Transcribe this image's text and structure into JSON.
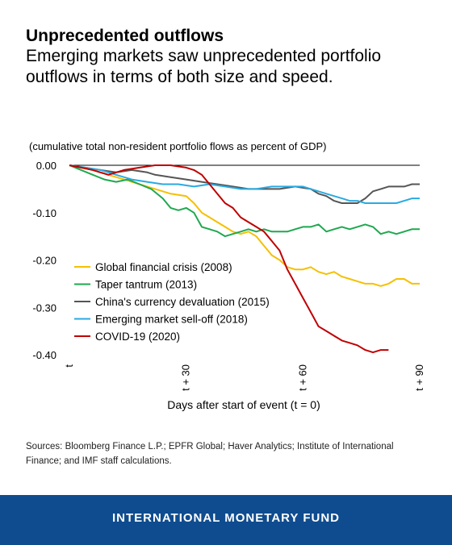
{
  "header": {
    "title": "Unprecedented outflows",
    "subtitle": "Emerging markets saw unprecedented portfolio outflows in terms of both size and speed."
  },
  "sources": "Sources: Bloomberg Finance L.P.;  EPFR Global; Haver Analytics; Institute of International Finance; and IMF staff calculations.",
  "footer": {
    "label": "INTERNATIONAL MONETARY FUND",
    "color": "#0f4c8f"
  },
  "chart_data": {
    "type": "line",
    "title": "",
    "unit_note": "(cumulative total non-resident portfolio flows as percent of GDP)",
    "xlabel": "Days after start of event (t = 0)",
    "ylabel": "",
    "xlim": [
      0,
      90
    ],
    "ylim": [
      -0.4,
      0.0
    ],
    "x_ticks": [
      {
        "value": 0,
        "label": "t"
      },
      {
        "value": 30,
        "label": "t + 30"
      },
      {
        "value": 60,
        "label": "t + 60"
      },
      {
        "value": 90,
        "label": "t + 90"
      }
    ],
    "y_ticks": [
      {
        "value": 0.0,
        "label": "0.00"
      },
      {
        "value": -0.1,
        "label": "-0.10"
      },
      {
        "value": -0.2,
        "label": "-0.20"
      },
      {
        "value": -0.3,
        "label": "-0.30"
      },
      {
        "value": -0.4,
        "label": "-0.40"
      }
    ],
    "grid": false,
    "legend_position": "bottom-left",
    "series": [
      {
        "name": "Global financial crisis (2008)",
        "color": "#f5c000",
        "points": [
          [
            0,
            0.0
          ],
          [
            3,
            -0.005
          ],
          [
            6,
            -0.01
          ],
          [
            10,
            -0.02
          ],
          [
            14,
            -0.03
          ],
          [
            18,
            -0.04
          ],
          [
            22,
            -0.05
          ],
          [
            26,
            -0.06
          ],
          [
            30,
            -0.065
          ],
          [
            32,
            -0.08
          ],
          [
            34,
            -0.1
          ],
          [
            36,
            -0.11
          ],
          [
            38,
            -0.12
          ],
          [
            40,
            -0.13
          ],
          [
            42,
            -0.14
          ],
          [
            44,
            -0.145
          ],
          [
            46,
            -0.14
          ],
          [
            48,
            -0.15
          ],
          [
            50,
            -0.17
          ],
          [
            52,
            -0.19
          ],
          [
            54,
            -0.2
          ],
          [
            56,
            -0.215
          ],
          [
            58,
            -0.22
          ],
          [
            60,
            -0.22
          ],
          [
            62,
            -0.215
          ],
          [
            64,
            -0.225
          ],
          [
            66,
            -0.23
          ],
          [
            68,
            -0.225
          ],
          [
            70,
            -0.235
          ],
          [
            72,
            -0.24
          ],
          [
            74,
            -0.245
          ],
          [
            76,
            -0.25
          ],
          [
            78,
            -0.25
          ],
          [
            80,
            -0.255
          ],
          [
            82,
            -0.25
          ],
          [
            84,
            -0.24
          ],
          [
            86,
            -0.24
          ],
          [
            88,
            -0.25
          ],
          [
            90,
            -0.25
          ]
        ]
      },
      {
        "name": "Taper tantrum (2013)",
        "color": "#1fa84f",
        "points": [
          [
            0,
            0.0
          ],
          [
            3,
            -0.01
          ],
          [
            6,
            -0.02
          ],
          [
            9,
            -0.03
          ],
          [
            12,
            -0.035
          ],
          [
            15,
            -0.03
          ],
          [
            18,
            -0.04
          ],
          [
            21,
            -0.05
          ],
          [
            24,
            -0.07
          ],
          [
            26,
            -0.09
          ],
          [
            28,
            -0.095
          ],
          [
            30,
            -0.09
          ],
          [
            32,
            -0.1
          ],
          [
            34,
            -0.13
          ],
          [
            36,
            -0.135
          ],
          [
            38,
            -0.14
          ],
          [
            40,
            -0.15
          ],
          [
            42,
            -0.145
          ],
          [
            44,
            -0.14
          ],
          [
            46,
            -0.135
          ],
          [
            48,
            -0.14
          ],
          [
            50,
            -0.135
          ],
          [
            52,
            -0.14
          ],
          [
            54,
            -0.14
          ],
          [
            56,
            -0.14
          ],
          [
            58,
            -0.135
          ],
          [
            60,
            -0.13
          ],
          [
            62,
            -0.13
          ],
          [
            64,
            -0.125
          ],
          [
            66,
            -0.14
          ],
          [
            68,
            -0.135
          ],
          [
            70,
            -0.13
          ],
          [
            72,
            -0.135
          ],
          [
            74,
            -0.13
          ],
          [
            76,
            -0.125
          ],
          [
            78,
            -0.13
          ],
          [
            80,
            -0.145
          ],
          [
            82,
            -0.14
          ],
          [
            84,
            -0.145
          ],
          [
            86,
            -0.14
          ],
          [
            88,
            -0.135
          ],
          [
            90,
            -0.135
          ]
        ]
      },
      {
        "name": "China's currency devaluation (2015)",
        "color": "#555555",
        "points": [
          [
            0,
            0.0
          ],
          [
            4,
            -0.005
          ],
          [
            8,
            -0.01
          ],
          [
            12,
            -0.015
          ],
          [
            16,
            -0.01
          ],
          [
            20,
            -0.015
          ],
          [
            22,
            -0.02
          ],
          [
            26,
            -0.025
          ],
          [
            30,
            -0.03
          ],
          [
            34,
            -0.035
          ],
          [
            38,
            -0.04
          ],
          [
            42,
            -0.045
          ],
          [
            46,
            -0.05
          ],
          [
            50,
            -0.05
          ],
          [
            54,
            -0.05
          ],
          [
            58,
            -0.045
          ],
          [
            62,
            -0.05
          ],
          [
            64,
            -0.06
          ],
          [
            66,
            -0.065
          ],
          [
            68,
            -0.075
          ],
          [
            70,
            -0.08
          ],
          [
            72,
            -0.08
          ],
          [
            74,
            -0.08
          ],
          [
            76,
            -0.07
          ],
          [
            78,
            -0.055
          ],
          [
            80,
            -0.05
          ],
          [
            82,
            -0.045
          ],
          [
            84,
            -0.045
          ],
          [
            86,
            -0.045
          ],
          [
            88,
            -0.04
          ],
          [
            90,
            -0.04
          ]
        ]
      },
      {
        "name": "Emerging market sell-off (2018)",
        "color": "#2aaae2",
        "points": [
          [
            0,
            0.0
          ],
          [
            4,
            -0.005
          ],
          [
            8,
            -0.01
          ],
          [
            12,
            -0.02
          ],
          [
            16,
            -0.03
          ],
          [
            20,
            -0.035
          ],
          [
            24,
            -0.04
          ],
          [
            28,
            -0.04
          ],
          [
            32,
            -0.045
          ],
          [
            36,
            -0.04
          ],
          [
            40,
            -0.045
          ],
          [
            44,
            -0.05
          ],
          [
            48,
            -0.05
          ],
          [
            52,
            -0.045
          ],
          [
            56,
            -0.045
          ],
          [
            60,
            -0.045
          ],
          [
            62,
            -0.05
          ],
          [
            64,
            -0.055
          ],
          [
            66,
            -0.06
          ],
          [
            68,
            -0.065
          ],
          [
            70,
            -0.07
          ],
          [
            72,
            -0.075
          ],
          [
            74,
            -0.075
          ],
          [
            76,
            -0.08
          ],
          [
            78,
            -0.08
          ],
          [
            80,
            -0.08
          ],
          [
            82,
            -0.08
          ],
          [
            84,
            -0.08
          ],
          [
            86,
            -0.075
          ],
          [
            88,
            -0.07
          ],
          [
            90,
            -0.07
          ]
        ]
      },
      {
        "name": "COVID-19 (2020)",
        "color": "#c00000",
        "points": [
          [
            0,
            0.0
          ],
          [
            3,
            -0.005
          ],
          [
            6,
            -0.01
          ],
          [
            10,
            -0.02
          ],
          [
            14,
            -0.01
          ],
          [
            18,
            -0.005
          ],
          [
            22,
            0.0
          ],
          [
            26,
            0.0
          ],
          [
            30,
            -0.005
          ],
          [
            32,
            -0.01
          ],
          [
            34,
            -0.02
          ],
          [
            36,
            -0.04
          ],
          [
            38,
            -0.06
          ],
          [
            40,
            -0.08
          ],
          [
            42,
            -0.09
          ],
          [
            44,
            -0.11
          ],
          [
            46,
            -0.12
          ],
          [
            48,
            -0.13
          ],
          [
            50,
            -0.14
          ],
          [
            52,
            -0.16
          ],
          [
            54,
            -0.18
          ],
          [
            56,
            -0.22
          ],
          [
            58,
            -0.25
          ],
          [
            60,
            -0.28
          ],
          [
            62,
            -0.31
          ],
          [
            64,
            -0.34
          ],
          [
            66,
            -0.35
          ],
          [
            68,
            -0.36
          ],
          [
            70,
            -0.37
          ],
          [
            72,
            -0.375
          ],
          [
            74,
            -0.38
          ],
          [
            76,
            -0.39
          ],
          [
            78,
            -0.395
          ],
          [
            80,
            -0.39
          ],
          [
            82,
            -0.39
          ]
        ]
      }
    ]
  }
}
